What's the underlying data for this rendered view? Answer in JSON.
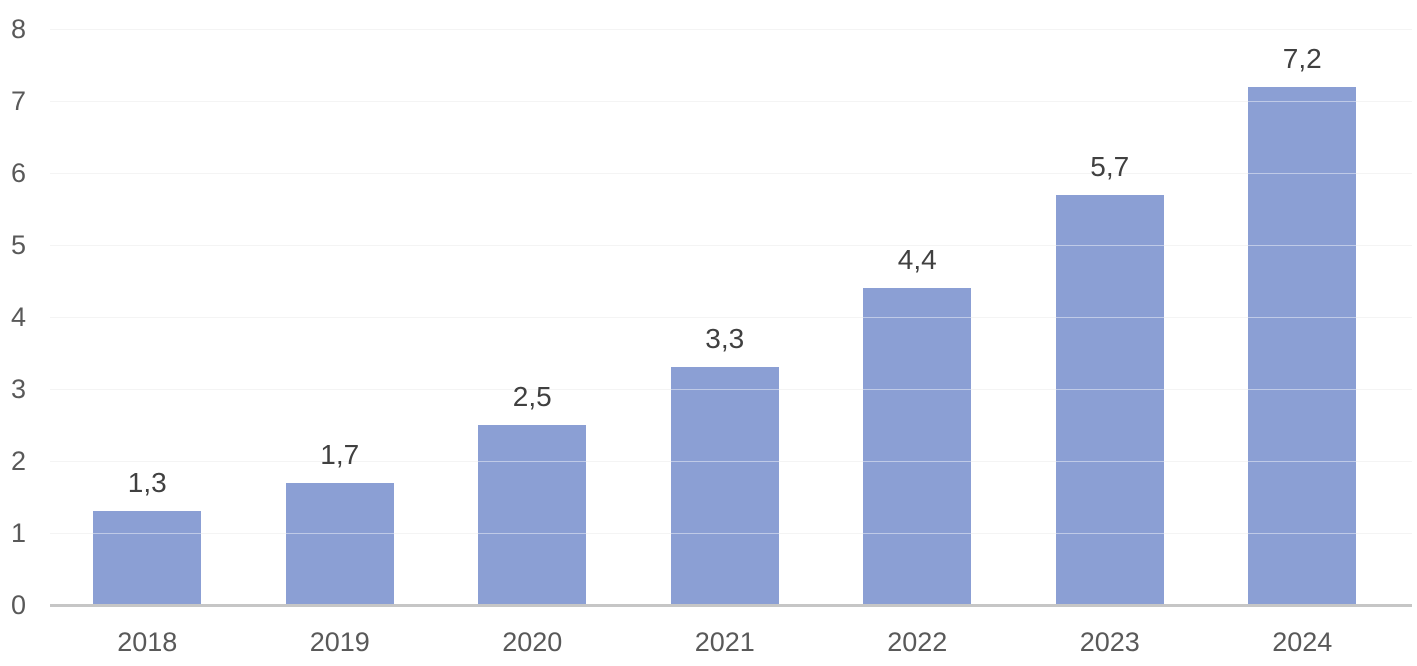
{
  "chart_data": {
    "type": "bar",
    "categories": [
      "2018",
      "2019",
      "2020",
      "2021",
      "2022",
      "2023",
      "2024"
    ],
    "values": [
      1.3,
      1.7,
      2.5,
      3.3,
      4.4,
      5.7,
      7.2
    ],
    "value_labels": [
      "1,3",
      "1,7",
      "2,5",
      "3,3",
      "4,4",
      "5,7",
      "7,2"
    ],
    "title": "",
    "xlabel": "",
    "ylabel": "",
    "ylim": [
      0,
      8
    ],
    "yticks": [
      0,
      1,
      2,
      3,
      4,
      5,
      6,
      7,
      8
    ],
    "grid": true,
    "legend_position": "none",
    "colors": {
      "bar_fill": "#8B9FD4",
      "axis_line": "#C6C6C6",
      "gridline": "#ECECEC",
      "tick_label": "#595959",
      "data_label": "#404040",
      "background": "#FFFFFF"
    }
  }
}
